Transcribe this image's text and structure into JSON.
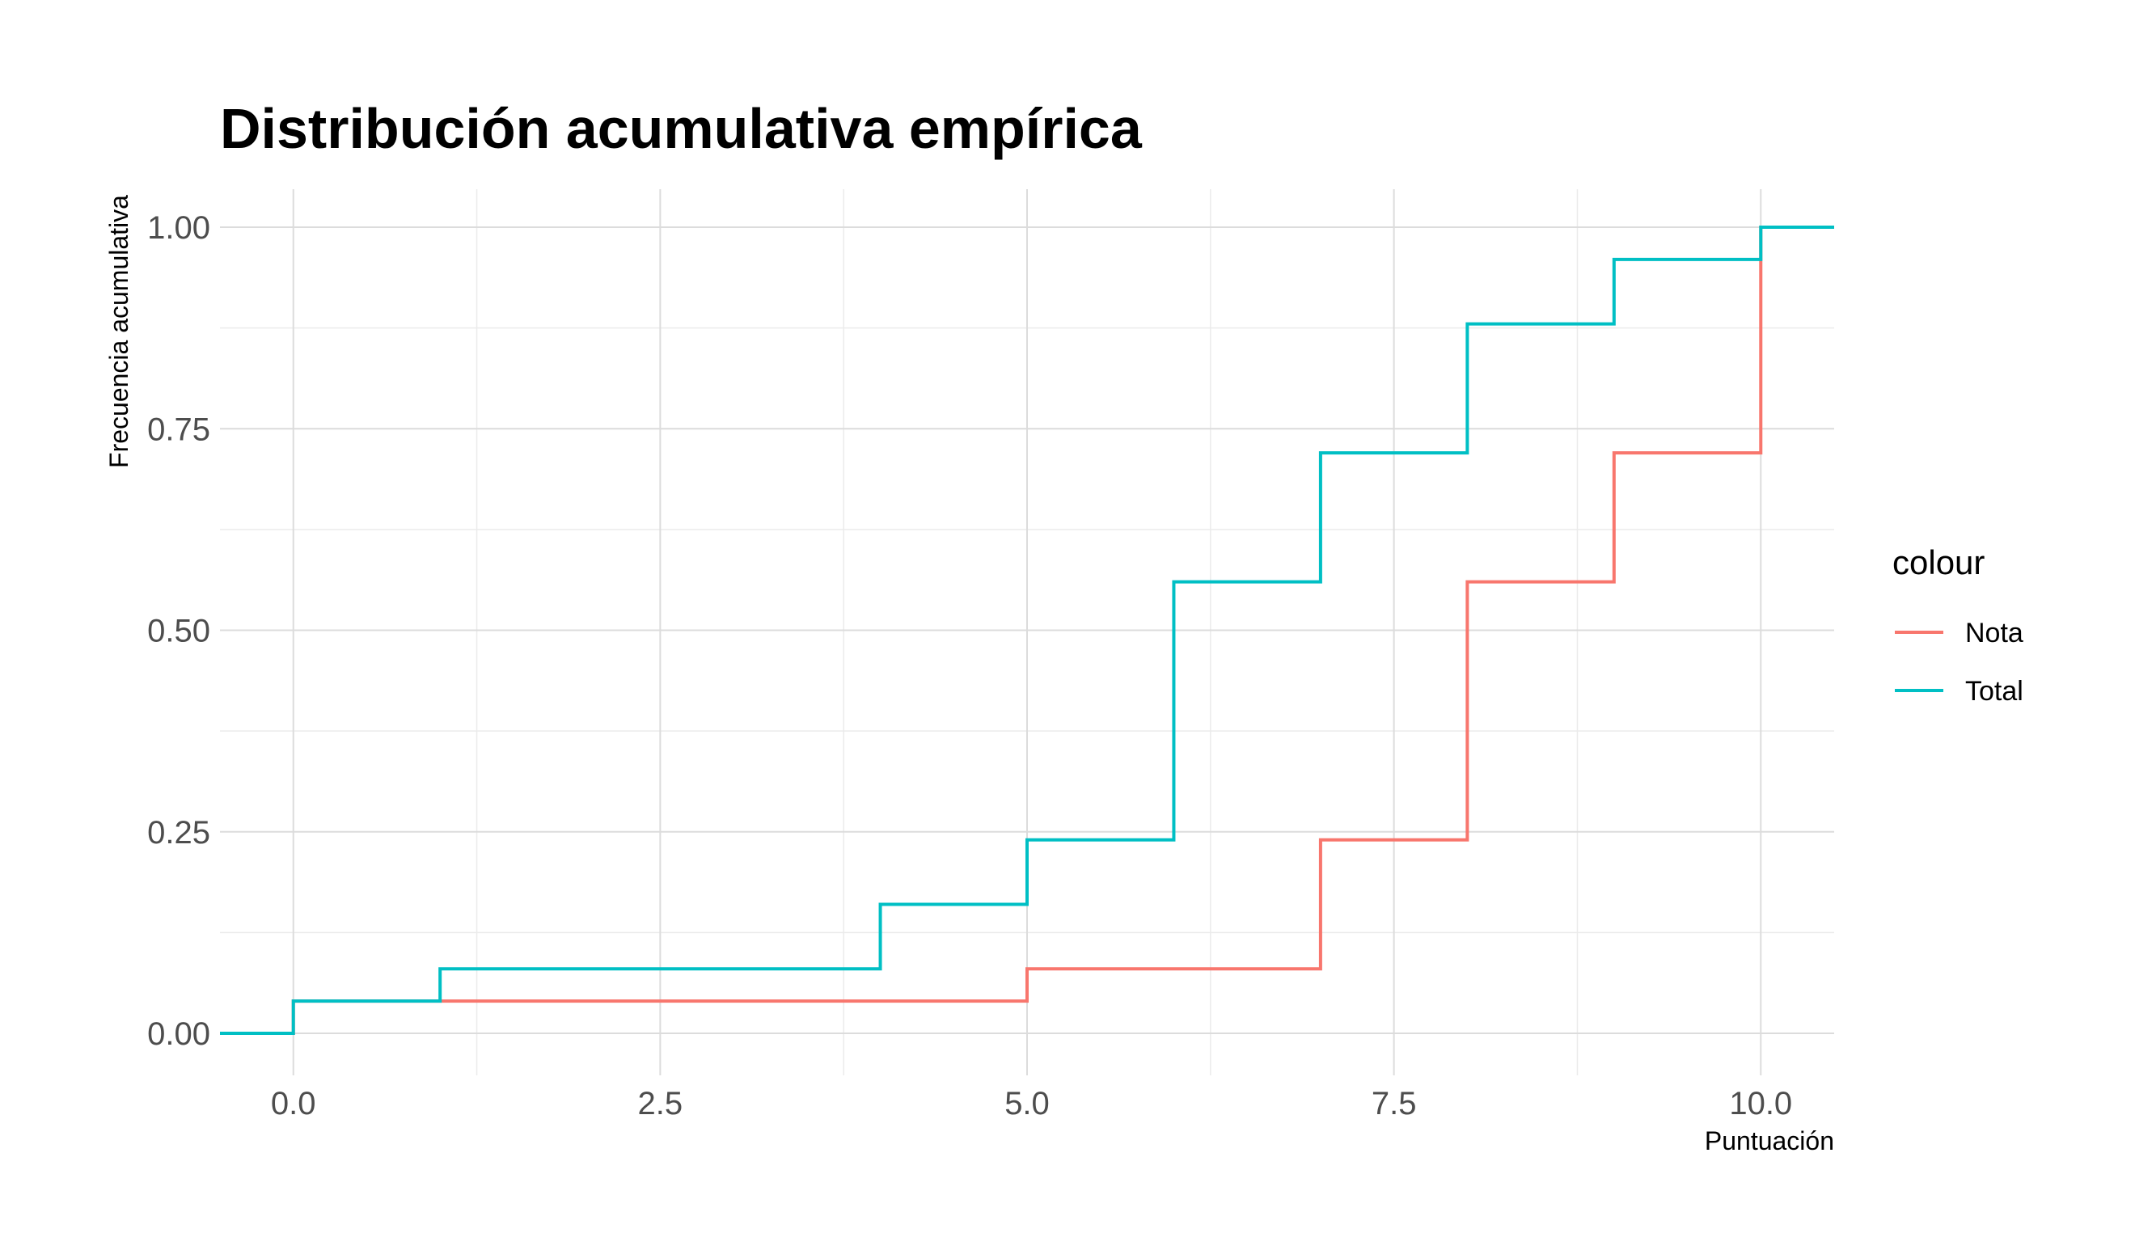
{
  "chart_data": {
    "type": "line",
    "step": true,
    "title": "Distribución acumulativa empírica",
    "xlabel": "Puntuación",
    "ylabel": "Frecuencia acumulativa",
    "xlim": [
      -0.5,
      10.5
    ],
    "ylim": [
      0,
      1
    ],
    "grid": true,
    "x_ticks": [
      0,
      2.5,
      5,
      7.5,
      10
    ],
    "x_tick_labels": [
      "0.0",
      "2.5",
      "5.0",
      "7.5",
      "10.0"
    ],
    "y_ticks": [
      0,
      0.25,
      0.5,
      0.75,
      1
    ],
    "y_tick_labels": [
      "0.00",
      "0.25",
      "0.50",
      "0.75",
      "1.00"
    ],
    "legend": {
      "title": "colour",
      "position": "right"
    },
    "series": [
      {
        "name": "Nota",
        "color": "#F8766D",
        "points": [
          [
            -0.5,
            0
          ],
          [
            0,
            0.04
          ],
          [
            1,
            0.04
          ],
          [
            5,
            0.08
          ],
          [
            7,
            0.24
          ],
          [
            8,
            0.56
          ],
          [
            9,
            0.72
          ],
          [
            10,
            1.0
          ],
          [
            10.5,
            1.0
          ]
        ]
      },
      {
        "name": "Total",
        "color": "#00BFC4",
        "points": [
          [
            -0.5,
            0
          ],
          [
            0,
            0.04
          ],
          [
            1,
            0.08
          ],
          [
            4,
            0.16
          ],
          [
            5,
            0.24
          ],
          [
            6,
            0.56
          ],
          [
            7,
            0.72
          ],
          [
            8,
            0.88
          ],
          [
            9,
            0.96
          ],
          [
            10,
            1.0
          ],
          [
            10.5,
            1.0
          ]
        ]
      }
    ]
  }
}
